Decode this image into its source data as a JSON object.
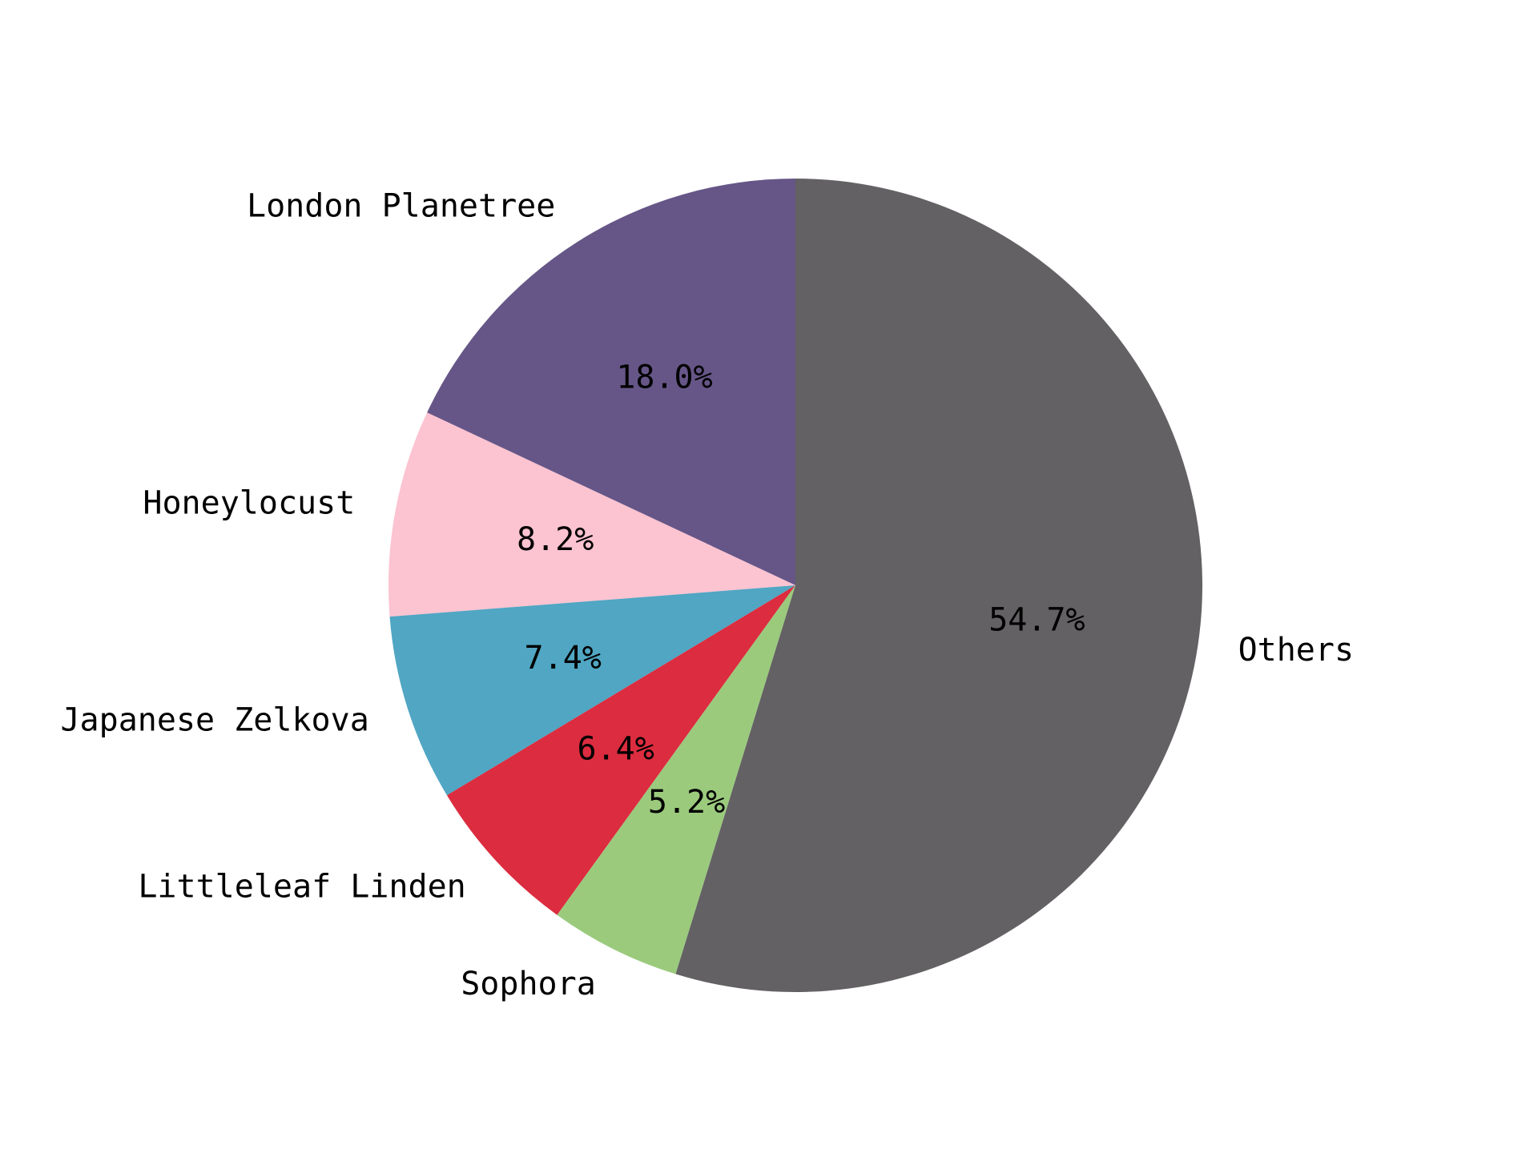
{
  "chart_data": {
    "type": "pie",
    "title": "",
    "start_angle_deg": 90,
    "direction": "counterclockwise",
    "slices": [
      {
        "label": "London Planetree",
        "value": 18.0,
        "pct_label": "18.0%",
        "color": "#665687"
      },
      {
        "label": "Honeylocust",
        "value": 8.2,
        "pct_label": "8.2%",
        "color": "#fcc3d1"
      },
      {
        "label": "Japanese Zelkova",
        "value": 7.4,
        "pct_label": "7.4%",
        "color": "#50a6c3"
      },
      {
        "label": "Littleleaf Linden",
        "value": 6.4,
        "pct_label": "6.4%",
        "color": "#dc2c3f"
      },
      {
        "label": "Sophora",
        "value": 5.2,
        "pct_label": "5.2%",
        "color": "#9bca7d"
      },
      {
        "label": "Others",
        "value": 54.7,
        "pct_label": "54.7%",
        "color": "#636164"
      }
    ]
  }
}
